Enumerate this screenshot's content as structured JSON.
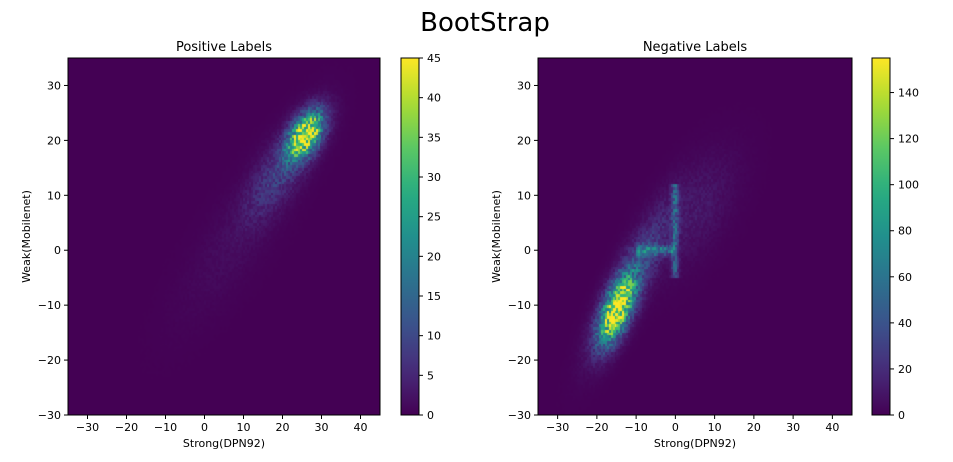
{
  "figure": {
    "title": "BootStrap"
  },
  "chart_data": [
    {
      "type": "heatmap",
      "title": "Positive Labels",
      "xlabel": "Strong(DPN92)",
      "ylabel": "Weak(Mobilenet)",
      "xlim": [
        -35,
        45
      ],
      "ylim": [
        -30,
        35
      ],
      "xticks": [
        -30,
        -20,
        -10,
        0,
        10,
        20,
        30,
        40
      ],
      "yticks": [
        -30,
        -20,
        -10,
        0,
        10,
        20,
        30
      ],
      "colorbar": {
        "min": 0,
        "max": 45,
        "ticks": [
          0,
          5,
          10,
          15,
          20,
          25,
          30,
          35,
          40,
          45
        ],
        "colormap": "viridis"
      },
      "bin_size": 0.5,
      "density_components": [
        {
          "cx": 26,
          "cy": 21,
          "sx": 3,
          "sy": 2.8,
          "rho": 0.5,
          "peak": 45
        },
        {
          "cx": 20,
          "cy": 15,
          "sx": 6,
          "sy": 6,
          "rho": 0.75,
          "peak": 8
        },
        {
          "cx": 8,
          "cy": 2,
          "sx": 10,
          "sy": 10,
          "rho": 0.8,
          "peak": 1.3
        }
      ]
    },
    {
      "type": "heatmap",
      "title": "Negative Labels",
      "xlabel": "Strong(DPN92)",
      "ylabel": "Weak(Mobilenet)",
      "xlim": [
        -35,
        45
      ],
      "ylim": [
        -30,
        35
      ],
      "xticks": [
        -30,
        -20,
        -10,
        0,
        10,
        20,
        30,
        40
      ],
      "yticks": [
        -30,
        -20,
        -10,
        0,
        10,
        20,
        30
      ],
      "colorbar": {
        "min": 0,
        "max": 155,
        "ticks": [
          0,
          20,
          40,
          60,
          80,
          100,
          120,
          140
        ],
        "colormap": "viridis"
      },
      "bin_size": 0.5,
      "density_components": [
        {
          "cx": -15,
          "cy": -11,
          "sx": 3,
          "sy": 4,
          "rho": 0.6,
          "peak": 150
        },
        {
          "cx": -11,
          "cy": -5,
          "sx": 6,
          "sy": 8,
          "rho": 0.85,
          "peak": 35
        },
        {
          "cx": 5,
          "cy": 7,
          "sx": 7,
          "sy": 7,
          "rho": 0.6,
          "peak": 10
        }
      ],
      "line_features": [
        {
          "axis": "y",
          "at": 0,
          "from": -10,
          "to": 0,
          "width": 0.6,
          "peak": 45
        },
        {
          "axis": "x",
          "at": 0,
          "from": -5,
          "to": 12,
          "width": 0.6,
          "peak": 40
        }
      ]
    }
  ]
}
